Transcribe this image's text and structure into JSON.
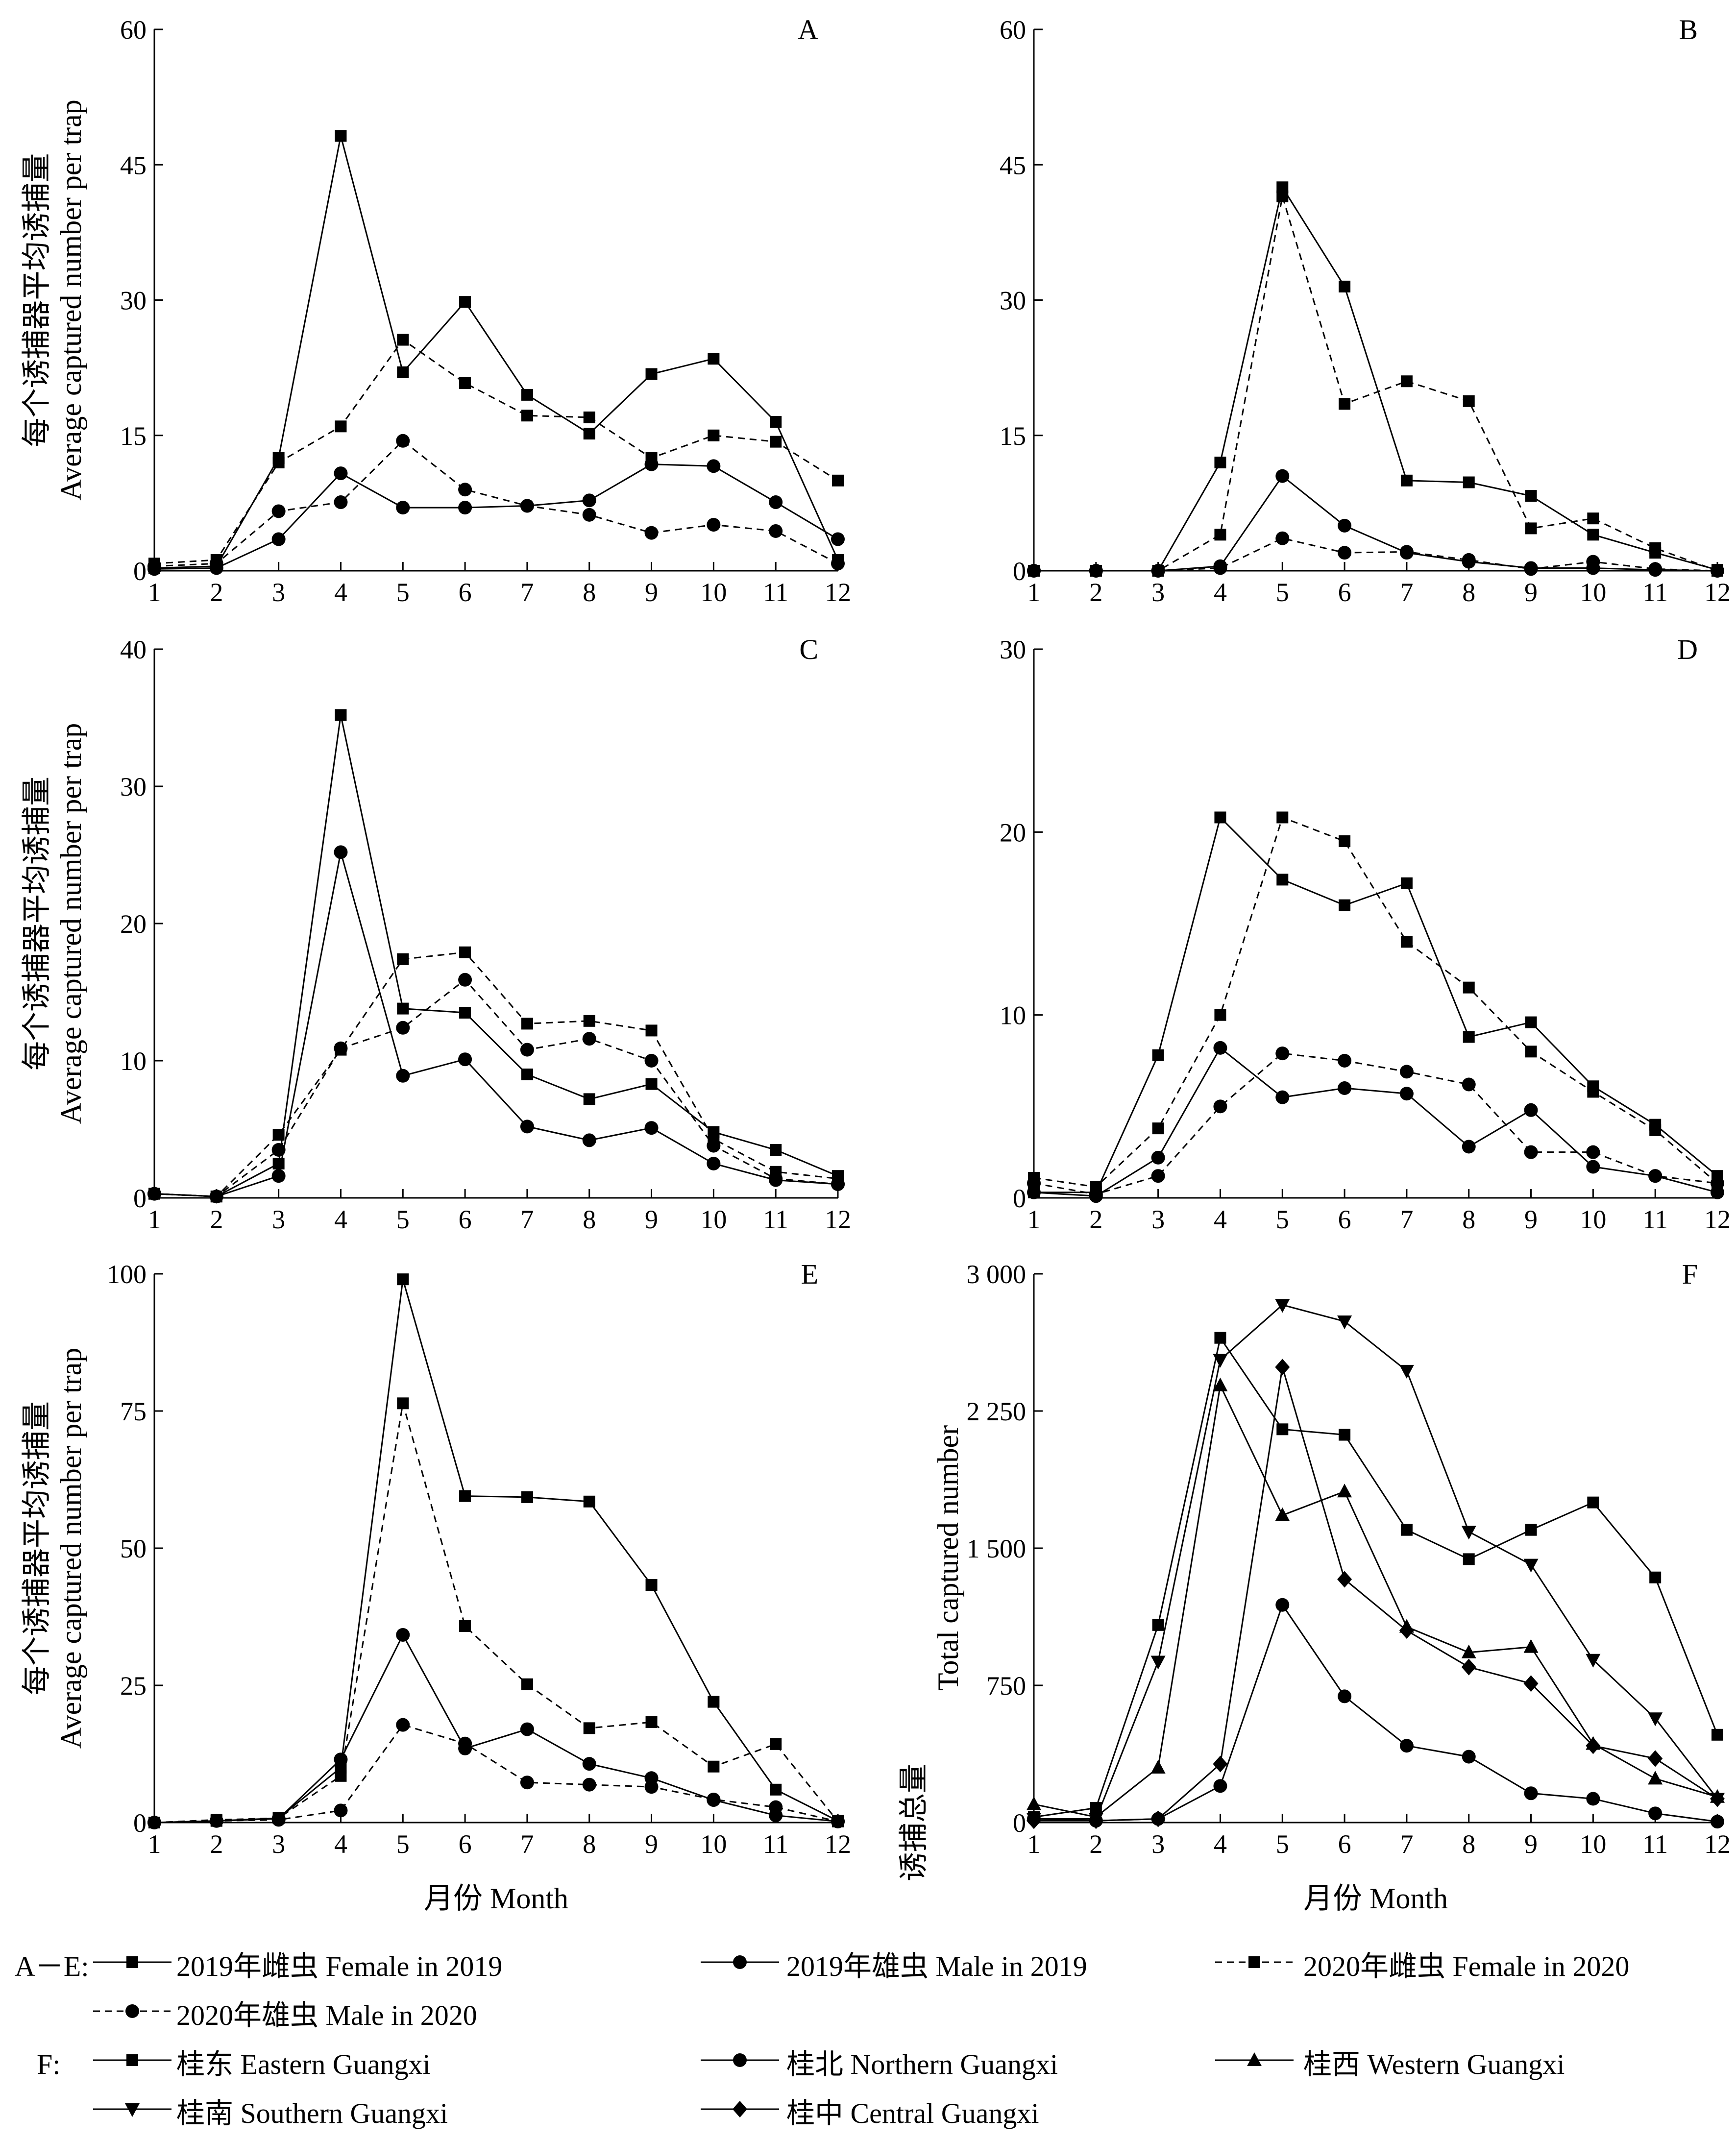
{
  "shared": {
    "ylabel_cn": "每个诱捕器平均诱捕量",
    "ylabel_en": "Average captured number per trap",
    "xlabel": "月份  Month",
    "months": [
      "1",
      "2",
      "3",
      "4",
      "5",
      "6",
      "7",
      "8",
      "9",
      "10",
      "11",
      "12"
    ]
  },
  "chart_data": [
    {
      "type": "line",
      "panel": "A",
      "ylim": [
        0,
        60
      ],
      "yticks": [
        "0",
        "15",
        "30",
        "45",
        "60"
      ],
      "ylabel": "每个诱捕器平均诱捕量 Average captured number per trap",
      "xlabel": "",
      "x": [
        1,
        2,
        3,
        4,
        5,
        6,
        7,
        8,
        9,
        10,
        11,
        12
      ],
      "series": [
        {
          "name": "2019年雌虫  Female in 2019",
          "marker": "square",
          "dash": false,
          "values": [
            0.3,
            0.5,
            12.5,
            48.2,
            22,
            29.8,
            19.5,
            15.2,
            21.8,
            23.5,
            16.5,
            1.2
          ]
        },
        {
          "name": "2019年雄虫  Male in 2019",
          "marker": "circle",
          "dash": false,
          "values": [
            0.2,
            0.3,
            3.5,
            10.8,
            7,
            7,
            7.2,
            7.8,
            11.8,
            11.6,
            7.6,
            3.5
          ]
        },
        {
          "name": "2020年雌虫  Female in 2020",
          "marker": "square",
          "dash": true,
          "values": [
            0.8,
            1.2,
            12,
            16,
            25.6,
            20.8,
            17.2,
            17,
            12.5,
            15,
            14.3,
            10
          ]
        },
        {
          "name": "2020年雄虫  Male in 2020",
          "marker": "circle",
          "dash": true,
          "values": [
            0.5,
            0.8,
            6.6,
            7.6,
            14.4,
            9,
            7.2,
            6.2,
            4.2,
            5.1,
            4.4,
            0.8
          ]
        }
      ]
    },
    {
      "type": "line",
      "panel": "B",
      "ylim": [
        0,
        60
      ],
      "yticks": [
        "0",
        "15",
        "30",
        "45",
        "60"
      ],
      "ylabel": "",
      "xlabel": "",
      "x": [
        1,
        2,
        3,
        4,
        5,
        6,
        7,
        8,
        9,
        10,
        11,
        12
      ],
      "series": [
        {
          "name": "2019年雌虫  Female in 2019",
          "marker": "square",
          "dash": false,
          "values": [
            0,
            0,
            0,
            12,
            42.5,
            31.5,
            10,
            9.8,
            8.3,
            4,
            2,
            0.1
          ]
        },
        {
          "name": "2019年雄虫  Male in 2019",
          "marker": "circle",
          "dash": false,
          "values": [
            0,
            0,
            0,
            0.5,
            10.5,
            5,
            2,
            1,
            0.3,
            0.3,
            0.1,
            0
          ]
        },
        {
          "name": "2020年雌虫  Female in 2020",
          "marker": "square",
          "dash": true,
          "values": [
            0,
            0,
            0,
            4,
            41.5,
            18.5,
            21,
            18.8,
            4.7,
            5.8,
            2.5,
            0
          ]
        },
        {
          "name": "2020年雄虫  Male in 2020",
          "marker": "circle",
          "dash": true,
          "values": [
            0,
            0,
            0,
            0.3,
            3.6,
            2,
            2.1,
            1.2,
            0.2,
            1,
            0.2,
            0
          ]
        }
      ]
    },
    {
      "type": "line",
      "panel": "C",
      "ylim": [
        0,
        40
      ],
      "yticks": [
        "0",
        "10",
        "20",
        "30",
        "40"
      ],
      "ylabel": "每个诱捕器平均诱捕量 Average captured number per trap",
      "xlabel": "",
      "x": [
        1,
        2,
        3,
        4,
        5,
        6,
        7,
        8,
        9,
        10,
        11,
        12
      ],
      "series": [
        {
          "name": "2019年雌虫  Female in 2019",
          "marker": "square",
          "dash": false,
          "values": [
            0.3,
            0.1,
            2.5,
            35.2,
            13.8,
            13.5,
            9,
            7.2,
            8.3,
            4.8,
            3.5,
            1.6
          ]
        },
        {
          "name": "2019年雄虫  Male in 2019",
          "marker": "circle",
          "dash": false,
          "values": [
            0.3,
            0.1,
            1.6,
            25.2,
            8.9,
            10.1,
            5.2,
            4.2,
            5.1,
            2.5,
            1.3,
            1
          ]
        },
        {
          "name": "2020年雌虫  Female in 2020",
          "marker": "square",
          "dash": true,
          "values": [
            0.3,
            0.1,
            4.6,
            10.8,
            17.4,
            17.9,
            12.7,
            12.9,
            12.2,
            4.3,
            1.9,
            1.4
          ]
        },
        {
          "name": "2020年雄虫  Male in 2020",
          "marker": "circle",
          "dash": true,
          "values": [
            0.3,
            0.1,
            3.5,
            10.9,
            12.4,
            15.9,
            10.8,
            11.6,
            10,
            3.8,
            1.4,
            1
          ]
        }
      ]
    },
    {
      "type": "line",
      "panel": "D",
      "ylim": [
        0,
        30
      ],
      "yticks": [
        "0",
        "10",
        "20",
        "30"
      ],
      "ylabel": "",
      "xlabel": "",
      "x": [
        1,
        2,
        3,
        4,
        5,
        6,
        7,
        8,
        9,
        10,
        11,
        12
      ],
      "series": [
        {
          "name": "2019年雌虫  Female in 2019",
          "marker": "square",
          "dash": false,
          "values": [
            0.3,
            0.3,
            7.8,
            20.8,
            17.4,
            16,
            17.2,
            8.8,
            9.6,
            6.1,
            4,
            1.2
          ]
        },
        {
          "name": "2019年雄虫  Male in 2019",
          "marker": "circle",
          "dash": false,
          "values": [
            0.3,
            0.1,
            2.2,
            8.2,
            5.5,
            6,
            5.7,
            2.8,
            4.8,
            1.7,
            1.2,
            0.3
          ]
        },
        {
          "name": "2020年雌虫  Female in 2020",
          "marker": "square",
          "dash": true,
          "values": [
            1.1,
            0.6,
            3.8,
            10,
            20.8,
            19.5,
            14,
            11.5,
            8,
            5.8,
            3.7,
            0.8
          ]
        },
        {
          "name": "2020年雄虫  Male in 2020",
          "marker": "circle",
          "dash": true,
          "values": [
            0.8,
            0.2,
            1.2,
            5,
            7.9,
            7.5,
            6.9,
            6.2,
            2.5,
            2.5,
            1.2,
            0.8
          ]
        }
      ]
    },
    {
      "type": "line",
      "panel": "E",
      "ylim": [
        0,
        100
      ],
      "yticks": [
        "0",
        "25",
        "50",
        "75",
        "100"
      ],
      "ylabel": "每个诱捕器平均诱捕量 Average captured number per trap",
      "xlabel": "月份  Month",
      "x": [
        1,
        2,
        3,
        4,
        5,
        6,
        7,
        8,
        9,
        10,
        11,
        12
      ],
      "series": [
        {
          "name": "2019年雌虫  Female in 2019",
          "marker": "square",
          "dash": false,
          "values": [
            0,
            0.3,
            0.8,
            10,
            99,
            59.5,
            59.3,
            58.5,
            43.3,
            22,
            6,
            0.3
          ]
        },
        {
          "name": "2019年雄虫  Male in 2019",
          "marker": "circle",
          "dash": false,
          "values": [
            0,
            0.3,
            0.7,
            11.5,
            34.2,
            13.5,
            17,
            10.7,
            8.1,
            4.1,
            1.3,
            0.2
          ]
        },
        {
          "name": "2020年雌虫  Female in 2020",
          "marker": "square",
          "dash": true,
          "values": [
            0,
            0.5,
            0.8,
            8.5,
            76.4,
            35.8,
            25.2,
            17.2,
            18.3,
            10.2,
            14.3,
            0.2
          ]
        },
        {
          "name": "2020年雄虫  Male in 2020",
          "marker": "circle",
          "dash": true,
          "values": [
            0,
            0.3,
            0.5,
            2.2,
            17.8,
            14.4,
            7.3,
            6.9,
            6.5,
            4.2,
            2.8,
            0.2
          ]
        }
      ]
    },
    {
      "type": "line",
      "panel": "F",
      "ylim": [
        0,
        3000
      ],
      "yticks": [
        "0",
        "750",
        "1 500",
        "2 250",
        "3 000"
      ],
      "ylabel": "诱捕总量 Total captured number",
      "xlabel": "月份  Month",
      "x": [
        1,
        2,
        3,
        4,
        5,
        6,
        7,
        8,
        9,
        10,
        11,
        12
      ],
      "series": [
        {
          "name": "桂东  Eastern Guangxi",
          "marker": "square",
          "dash": false,
          "values": [
            30,
            80,
            1080,
            2650,
            2150,
            2120,
            1600,
            1440,
            1600,
            1750,
            1340,
            480
          ]
        },
        {
          "name": "桂北  Northern Guangxi",
          "marker": "circle",
          "dash": false,
          "values": [
            20,
            10,
            20,
            200,
            1190,
            690,
            420,
            360,
            160,
            130,
            50,
            5
          ]
        },
        {
          "name": "桂西  Western Guangxi",
          "marker": "triangle-up",
          "dash": false,
          "values": [
            100,
            30,
            300,
            2390,
            1680,
            1810,
            1070,
            930,
            960,
            430,
            240,
            140
          ]
        },
        {
          "name": "桂南  Southern Guangxi",
          "marker": "triangle-down",
          "dash": false,
          "values": [
            20,
            20,
            880,
            2530,
            2830,
            2740,
            2470,
            1590,
            1410,
            890,
            570,
            130
          ]
        },
        {
          "name": "桂中  Central Guangxi",
          "marker": "diamond",
          "dash": false,
          "values": [
            10,
            10,
            20,
            320,
            2490,
            1330,
            1050,
            850,
            760,
            420,
            350,
            130
          ]
        }
      ]
    }
  ],
  "legend": {
    "ae_prefix": "A－E:",
    "f_prefix": "F:",
    "ae_items": [
      {
        "label": "2019年雌虫  Female in 2019",
        "marker": "square",
        "dash": false
      },
      {
        "label": "2019年雄虫  Male in 2019",
        "marker": "circle",
        "dash": false
      },
      {
        "label": "2020年雌虫  Female in 2020",
        "marker": "square",
        "dash": true
      },
      {
        "label": "2020年雄虫  Male in 2020",
        "marker": "circle",
        "dash": true
      }
    ],
    "f_items": [
      {
        "label": "桂东  Eastern Guangxi",
        "marker": "square",
        "dash": false
      },
      {
        "label": "桂北  Northern Guangxi",
        "marker": "circle",
        "dash": false
      },
      {
        "label": "桂西  Western Guangxi",
        "marker": "triangle-up",
        "dash": false
      },
      {
        "label": "桂南  Southern Guangxi",
        "marker": "triangle-down",
        "dash": false
      },
      {
        "label": "桂中  Central Guangxi",
        "marker": "diamond",
        "dash": false
      }
    ]
  }
}
